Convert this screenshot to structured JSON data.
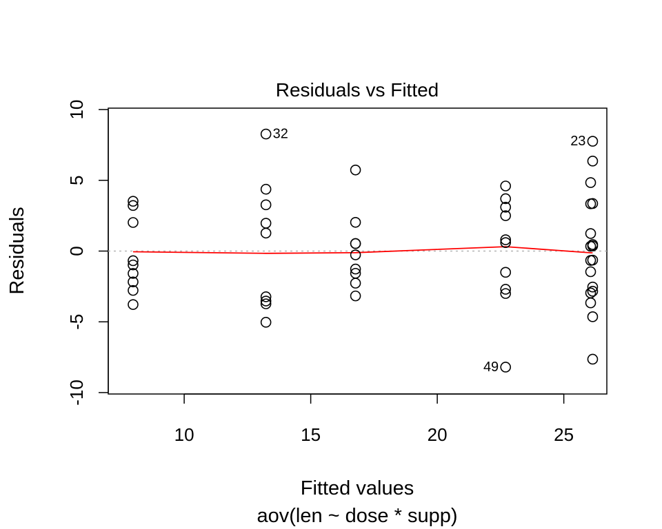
{
  "chart_data": {
    "type": "scatter",
    "title": "Residuals vs Fitted",
    "xlabel": "Fitted values",
    "subtitle": "aov(len ~ dose * supp)",
    "ylabel": "Residuals",
    "xlim": [
      7.0,
      26.7
    ],
    "ylim": [
      -10.1,
      10.1
    ],
    "xticks": [
      10,
      15,
      20,
      25
    ],
    "yticks": [
      -10,
      -5,
      0,
      5,
      10
    ],
    "reference_line": {
      "y": 0,
      "style": "dotted",
      "color": "#b3b3b3"
    },
    "smooth_line": {
      "color": "#ff0000",
      "x": [
        7.98,
        13.23,
        16.77,
        22.7,
        26.06,
        26.14
      ],
      "y": [
        -0.05,
        -0.16,
        -0.11,
        0.31,
        -0.12,
        -0.12
      ]
    },
    "points": [
      {
        "x": 7.98,
        "y": 3.52
      },
      {
        "x": 7.98,
        "y": 3.22
      },
      {
        "x": 7.98,
        "y": 2.02
      },
      {
        "x": 7.98,
        "y": -0.68
      },
      {
        "x": 7.98,
        "y": -0.98
      },
      {
        "x": 7.98,
        "y": -1.58
      },
      {
        "x": 7.98,
        "y": -2.18
      },
      {
        "x": 7.98,
        "y": -2.78
      },
      {
        "x": 7.98,
        "y": -3.78
      },
      {
        "x": 13.23,
        "y": 8.27
      },
      {
        "x": 13.23,
        "y": 4.37
      },
      {
        "x": 13.23,
        "y": 3.27
      },
      {
        "x": 13.23,
        "y": 1.97
      },
      {
        "x": 13.23,
        "y": 1.27
      },
      {
        "x": 13.23,
        "y": -3.23
      },
      {
        "x": 13.23,
        "y": -3.53
      },
      {
        "x": 13.23,
        "y": -3.73
      },
      {
        "x": 13.23,
        "y": -5.03
      },
      {
        "x": 16.77,
        "y": 5.73
      },
      {
        "x": 16.77,
        "y": 2.03
      },
      {
        "x": 16.77,
        "y": 0.53
      },
      {
        "x": 16.77,
        "y": 0.53
      },
      {
        "x": 16.77,
        "y": -0.27
      },
      {
        "x": 16.77,
        "y": -1.27
      },
      {
        "x": 16.77,
        "y": -1.57
      },
      {
        "x": 16.77,
        "y": -2.27
      },
      {
        "x": 16.77,
        "y": -3.17
      },
      {
        "x": 22.7,
        "y": 4.6
      },
      {
        "x": 22.7,
        "y": 3.7
      },
      {
        "x": 22.7,
        "y": 3.1
      },
      {
        "x": 22.7,
        "y": 2.5
      },
      {
        "x": 22.7,
        "y": 0.8
      },
      {
        "x": 22.7,
        "y": 0.6
      },
      {
        "x": 22.7,
        "y": -1.5
      },
      {
        "x": 22.7,
        "y": -2.7
      },
      {
        "x": 22.7,
        "y": -3.0
      },
      {
        "x": 22.7,
        "y": -8.2
      },
      {
        "x": 26.06,
        "y": 4.84
      },
      {
        "x": 26.06,
        "y": 3.34
      },
      {
        "x": 26.06,
        "y": 1.24
      },
      {
        "x": 26.06,
        "y": 0.34
      },
      {
        "x": 26.06,
        "y": -0.66
      },
      {
        "x": 26.06,
        "y": -1.46
      },
      {
        "x": 26.06,
        "y": -2.96
      },
      {
        "x": 26.06,
        "y": -3.66
      },
      {
        "x": 26.14,
        "y": 7.76
      },
      {
        "x": 26.14,
        "y": 6.36
      },
      {
        "x": 26.14,
        "y": 3.36
      },
      {
        "x": 26.14,
        "y": 0.46
      },
      {
        "x": 26.14,
        "y": 0.36
      },
      {
        "x": 26.14,
        "y": -0.64
      },
      {
        "x": 26.14,
        "y": -2.54
      },
      {
        "x": 26.14,
        "y": -2.84
      },
      {
        "x": 26.14,
        "y": -4.64
      },
      {
        "x": 26.14,
        "y": -7.64
      }
    ],
    "point_labels": [
      {
        "text": "32",
        "x": 13.23,
        "y": 8.27,
        "side": "right"
      },
      {
        "text": "23",
        "x": 26.14,
        "y": 7.76,
        "side": "left"
      },
      {
        "text": "49",
        "x": 22.7,
        "y": -8.2,
        "side": "left"
      }
    ]
  }
}
